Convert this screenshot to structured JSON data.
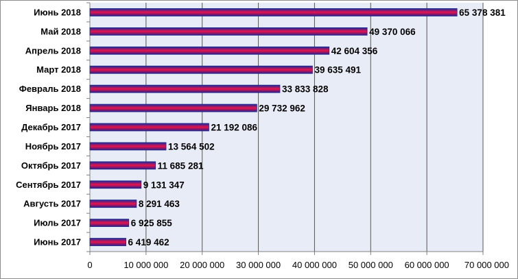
{
  "chart_data": {
    "type": "bar",
    "orientation": "horizontal",
    "categories": [
      "Июнь 2018",
      "Май 2018",
      "Апрель 2018",
      "Март 2018",
      "Февраль 2018",
      "Январь 2018",
      "Декабрь 2017",
      "Ноябрь 2017",
      "Октябрь 2017",
      "Сентябрь 2017",
      "Августь 2017",
      "Июль 2017",
      "Июнь 2017"
    ],
    "values": [
      65378381,
      49370066,
      42604356,
      39635491,
      33833828,
      29732962,
      21192086,
      13564502,
      11685281,
      9131347,
      8291463,
      6925855,
      6419462
    ],
    "value_labels": [
      "65 378 381",
      "49 370 066",
      "42 604 356",
      "39 635 491",
      "33 833 828",
      "29 732 962",
      "21 192 086",
      "13 564 502",
      "11 685 281",
      "9 131 347",
      "8 291 463",
      "6 925 855",
      "6 419 462"
    ],
    "xlim": [
      0,
      70000000
    ],
    "x_ticks": [
      0,
      10000000,
      20000000,
      30000000,
      40000000,
      50000000,
      60000000,
      70000000
    ],
    "x_tick_labels": [
      "0",
      "10 000 000",
      "20 000 000",
      "30 000 000",
      "40 000 000",
      "50 000 000",
      "60 000 000",
      "70 000 000"
    ],
    "grid": "vertical",
    "legend": "none",
    "title": "",
    "xlabel": "",
    "ylabel": "",
    "colors": {
      "plot_background": "#e8ecf6",
      "bar_edge": "#1f2a8c",
      "bar_top": "#1a2a9c",
      "bar_mid": "#e8124a",
      "bar_bottom": "#2a1e8c",
      "grid": "#555555",
      "axis": "#808080"
    }
  }
}
